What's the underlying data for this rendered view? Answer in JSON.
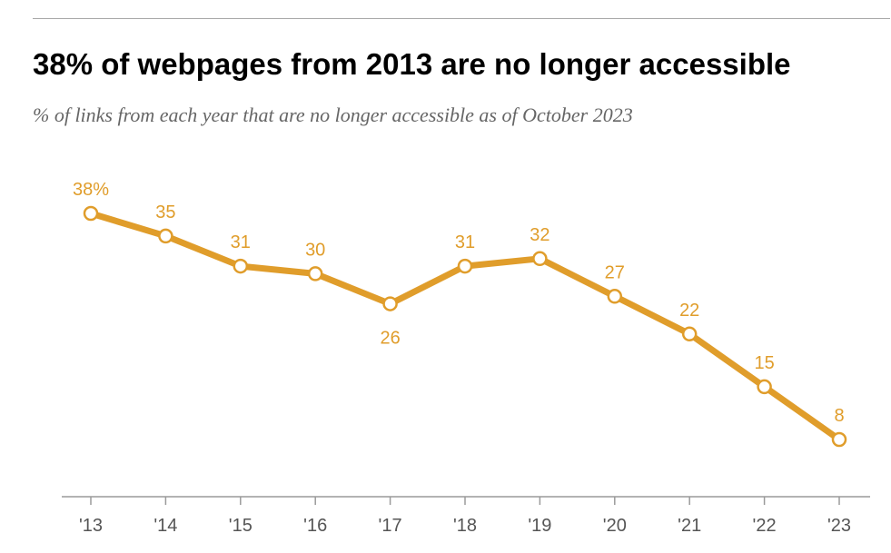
{
  "header": {
    "title": "38% of webpages from 2013 are no longer accessible",
    "subtitle": "% of links from each year that are no longer accessible as of October 2023"
  },
  "colors": {
    "series": "#e09d2b",
    "axis": "#9a9a9a",
    "rule": "#a7a7a7",
    "tick_text": "#555555"
  },
  "chart_data": {
    "type": "line",
    "title": "38% of webpages from 2013 are no longer accessible",
    "subtitle": "% of links from each year that are no longer accessible as of October 2023",
    "categories": [
      "'13",
      "'14",
      "'15",
      "'16",
      "'17",
      "'18",
      "'19",
      "'20",
      "'21",
      "'22",
      "'23"
    ],
    "values": [
      38,
      35,
      31,
      30,
      26,
      31,
      32,
      27,
      22,
      15,
      8
    ],
    "data_labels": [
      "38%",
      "35",
      "31",
      "30",
      "26",
      "31",
      "32",
      "27",
      "22",
      "15",
      "8"
    ],
    "label_below": [
      false,
      false,
      false,
      false,
      true,
      false,
      false,
      false,
      false,
      false,
      false
    ],
    "xlabel": "",
    "ylabel": "",
    "ylim": [
      0,
      45
    ],
    "grid": false,
    "legend": "none"
  }
}
